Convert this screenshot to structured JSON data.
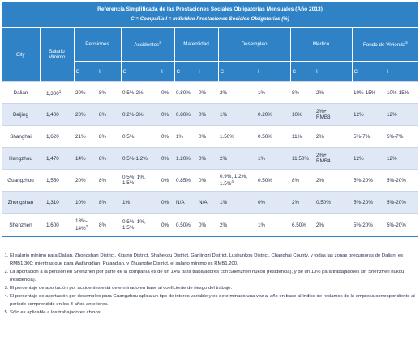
{
  "title": "Referencia Simplificada de las Prestaciones Sociales Obligatorias Mensuales (Año 2013)",
  "subtitle": "C = Compañía    I = Individuo    Prestaciones Sociales Obligatorias (%)",
  "columns": {
    "city": "City",
    "salary": "Salario Mínimo",
    "groups": [
      {
        "label": "Pensiones",
        "sup": ""
      },
      {
        "label": "Accidentes",
        "sup": "3"
      },
      {
        "label": "Maternidad",
        "sup": ""
      },
      {
        "label": "Desempleo",
        "sup": ""
      },
      {
        "label": "Médico",
        "sup": ""
      },
      {
        "label": "Fondo de Vivienda",
        "sup": "5"
      }
    ],
    "c": "C",
    "i": "I"
  },
  "rows": [
    {
      "city": "Dalian",
      "salary": "1,300",
      "salary_sup": "1",
      "pc": "20%",
      "pi": "8%",
      "ac": "0.5%-2%",
      "ai": "0%",
      "mc": "0.80%",
      "mi": "0%",
      "dc": "2%",
      "dc_sup": "",
      "di": "1%",
      "hc": "8%",
      "hi": "2%",
      "hi2": "",
      "fc": "10%-15%",
      "fi": "10%-15%"
    },
    {
      "city": "Beijing",
      "salary": "1,400",
      "salary_sup": "",
      "pc": "20%",
      "pi": "8%",
      "ac": "0.2%-3%",
      "ai": "0%",
      "mc": "0.80%",
      "mi": "0%",
      "dc": "1%",
      "dc_sup": "",
      "di": "0.20%",
      "hc": "10%",
      "hi": "2%+",
      "hi2": "RMB3",
      "fc": "12%",
      "fi": "12%"
    },
    {
      "city": "Shanghai",
      "salary": "1,620",
      "salary_sup": "",
      "pc": "21%",
      "pi": "8%",
      "ac": "0.5%",
      "ai": "0%",
      "mc": "1%",
      "mi": "0%",
      "dc": "1.50%",
      "dc_sup": "",
      "di": "0.50%",
      "hc": "11%",
      "hi": "2%",
      "hi2": "",
      "fc": "5%-7%",
      "fi": "5%-7%"
    },
    {
      "city": "Hangzhou",
      "salary": "1,470",
      "salary_sup": "",
      "pc": "14%",
      "pi": "8%",
      "ac": "0.5%-1.2%",
      "ai": "0%",
      "mc": "1.20%",
      "mi": "0%",
      "dc": "2%",
      "dc_sup": "",
      "di": "1%",
      "hc": "11.50%",
      "hi": "2%+",
      "hi2": "RMB4",
      "fc": "12%",
      "fi": "12%"
    },
    {
      "city": "Guangzhou",
      "salary": "1,550",
      "salary_sup": "",
      "pc": "20%",
      "pi": "8%",
      "ac": "0.5%, 1%,",
      "ac2": "1.5%",
      "ai": "0%",
      "mc": "0.85%",
      "mi": "0%",
      "dc": "0.9%, 1.2%,",
      "dc2": "1.5%",
      "dc_sup": "4",
      "di": "0.50%",
      "hc": "8%",
      "hi": "2%",
      "hi2": "",
      "fc": "5%-20%",
      "fi": "5%-20%"
    },
    {
      "city": "Zhongshan",
      "salary": "1,310",
      "salary_sup": "",
      "pc": "10%",
      "pi": "8%",
      "ac": "1%",
      "ai": "0%",
      "mc": "N/A",
      "mi": "N/A",
      "dc": "1%",
      "dc_sup": "",
      "di": "0%",
      "hc": "2%",
      "hi": "0.50%",
      "hi2": "",
      "fc": "5%-20%",
      "fi": "5%-20%"
    },
    {
      "city": "Shenzhen",
      "salary": "1,600",
      "salary_sup": "",
      "pc": "13%-",
      "pc2": "14%",
      "pc_sup": "2",
      "pi": "8%",
      "ac": "0.5%, 1%,",
      "ac2": "1.5%",
      "ai": "0%",
      "mc": "0.50%",
      "mi": "0%",
      "dc": "2%",
      "dc_sup": "",
      "di": "1%",
      "hc": "6.50%",
      "hi": "2%",
      "hi2": "",
      "fc": "5%-20%",
      "fi": "5%-20%"
    }
  ],
  "notes": [
    "El salario mínimo para Dalian, Zhongshan District, Xigang District, Shahekou District, Ganjingzi District, Lushunkou District, Changhai County, y todas las zonas precursoras de Dalian, es RMB1.300; mientras que para Wafangdian, Pulandian, y Zhuanghe District, el salario mínimo es RMB1.200.",
    "La aportación a la pensión en Shenzhen por parte de la compañía es de un 14% para trabajadores con Shenzhen hukou (residencia), y de un 13% para trabajadores sin Shenzhen hukou (residencia).",
    "El porcentaje de aportación por accidentes está determinado en base al coeficiente de riesgo del trabajo.",
    "El porcentaje de aportación por desempleo para Guangzhou aplica un tipo de interés variable y es determinado una vez al año en base al índice de reclamos de la empresa correspondiente al período comprendido en los 3 años anteriores.",
    "Sólo es aplicable a los trabajadores chinos."
  ]
}
